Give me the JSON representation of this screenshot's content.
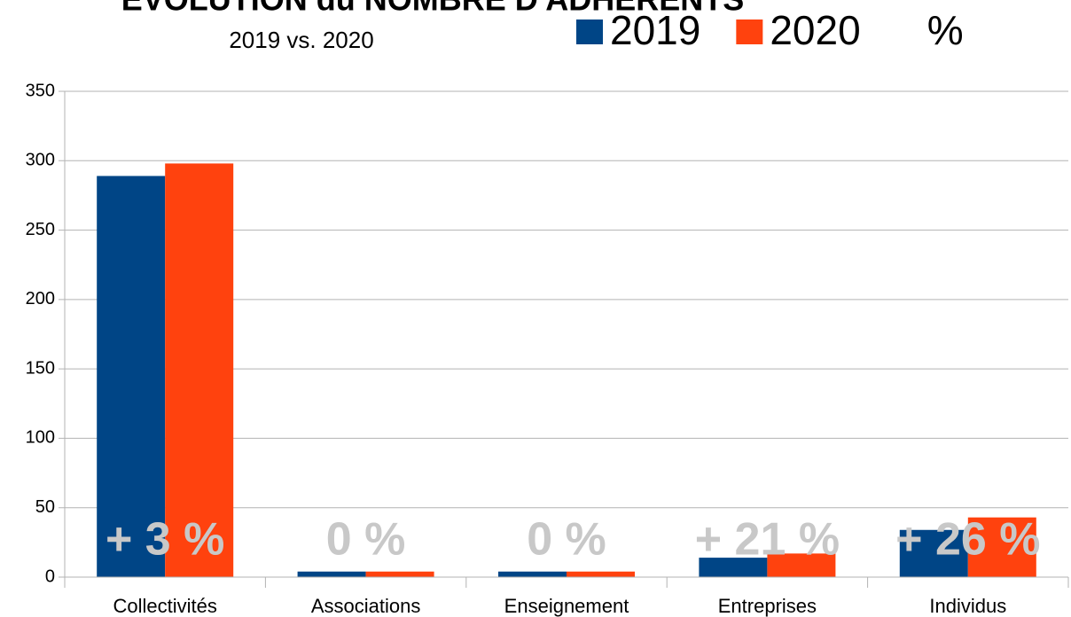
{
  "chart_data": {
    "type": "bar",
    "title": "EVOLUTION du NOMBRE D'ADHERENTS",
    "subtitle": "2019 vs. 2020",
    "categories": [
      "Collectivités",
      "Associations",
      "Enseignement",
      "Entreprises",
      "Individus"
    ],
    "series": [
      {
        "name": "2019",
        "color": "#004586",
        "values": [
          289,
          4,
          4,
          14,
          34
        ]
      },
      {
        "name": "2020",
        "color": "#ff420e",
        "values": [
          298,
          4,
          4,
          17,
          43
        ]
      },
      {
        "name": "%",
        "color": "#c8c8c8",
        "display": "labels",
        "values": [
          3,
          0,
          0,
          21,
          26
        ],
        "value_labels": [
          "+ 3 %",
          "0 %",
          "0 %",
          "+ 21 %",
          "+ 26 %"
        ]
      }
    ],
    "ylim": [
      0,
      350
    ],
    "yticks": [
      0,
      50,
      100,
      150,
      200,
      250,
      300,
      350
    ],
    "grid": true,
    "legend": "top"
  }
}
